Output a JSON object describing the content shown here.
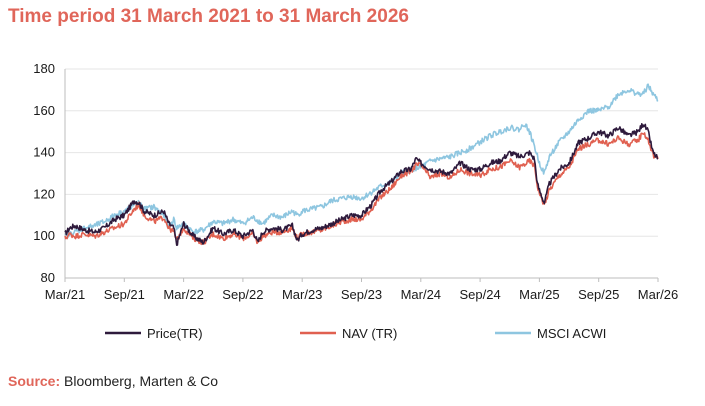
{
  "title": "Time period 31 March 2021 to 31 March 2026",
  "source": {
    "label": "Source:",
    "text": " Bloomberg, Marten & Co"
  },
  "colors": {
    "accent": "#e0665a",
    "price": "#2e1a3c",
    "nav": "#e06050",
    "msci": "#8ec6e0"
  },
  "chart_data": {
    "type": "line",
    "title": "Time period 31 March 2021 to 31 March 2026",
    "ylim": [
      80,
      180
    ],
    "yticks": [
      80,
      100,
      120,
      140,
      160,
      180
    ],
    "xlim": [
      0,
      60
    ],
    "xticks": [
      {
        "pos": 0,
        "label": "Mar/21"
      },
      {
        "pos": 6,
        "label": "Sep/21"
      },
      {
        "pos": 12,
        "label": "Mar/22"
      },
      {
        "pos": 18,
        "label": "Sep/22"
      },
      {
        "pos": 24,
        "label": "Mar/23"
      },
      {
        "pos": 30,
        "label": "Sep/23"
      },
      {
        "pos": 36,
        "label": "Mar/24"
      },
      {
        "pos": 42,
        "label": "Sep/24"
      },
      {
        "pos": 48,
        "label": "Mar/25"
      },
      {
        "pos": 54,
        "label": "Sep/25"
      },
      {
        "pos": 60,
        "label": "Mar/26"
      }
    ],
    "grid": true,
    "legend_position": "bottom",
    "series": [
      {
        "name": "Price(TR)",
        "color": "#2e1a3c",
        "x": [
          0,
          0.5,
          1,
          2,
          3,
          4,
          5,
          6,
          7,
          7.5,
          8,
          9,
          10,
          10.5,
          11,
          11.3,
          12,
          13,
          14,
          15,
          16,
          17,
          18,
          19,
          19.5,
          20,
          21,
          22,
          23,
          23.5,
          24,
          25,
          26,
          27,
          28,
          29,
          30,
          31,
          32,
          33,
          34,
          35,
          35.5,
          36,
          37,
          38,
          39,
          40,
          41,
          42,
          43,
          44,
          45,
          46,
          47,
          47.5,
          47.8,
          48,
          48.5,
          49,
          50,
          51,
          52,
          53,
          54,
          55,
          56,
          57,
          58,
          58.5,
          59,
          59.5,
          60
        ],
        "y": [
          101,
          104,
          105,
          103,
          102,
          104,
          108,
          110,
          117,
          116,
          112,
          110,
          112,
          106,
          104,
          96,
          106,
          100,
          97,
          104,
          101,
          103,
          100,
          103,
          97,
          102,
          104,
          103,
          105,
          98,
          101,
          103,
          104,
          106,
          108,
          110,
          110,
          115,
          122,
          126,
          131,
          132,
          137,
          135,
          132,
          131,
          130,
          135,
          132,
          132,
          135,
          136,
          140,
          138,
          140,
          137,
          125,
          122,
          116,
          125,
          132,
          135,
          145,
          147,
          150,
          148,
          152,
          148,
          150,
          154,
          150,
          140,
          137
        ]
      },
      {
        "name": "NAV (TR)",
        "color": "#e06050",
        "x": [
          0,
          0.5,
          1,
          2,
          3,
          4,
          5,
          6,
          7,
          7.5,
          8,
          9,
          10,
          10.5,
          11,
          11.3,
          12,
          13,
          14,
          15,
          16,
          17,
          18,
          19,
          19.5,
          20,
          21,
          22,
          23,
          23.5,
          24,
          25,
          26,
          27,
          28,
          29,
          30,
          31,
          32,
          33,
          34,
          35,
          35.5,
          36,
          37,
          38,
          39,
          40,
          41,
          42,
          43,
          44,
          45,
          46,
          47,
          47.5,
          47.8,
          48,
          48.5,
          49,
          50,
          51,
          52,
          53,
          54,
          55,
          56,
          57,
          58,
          58.5,
          59,
          59.5,
          60
        ],
        "y": [
          99,
          101,
          100,
          101,
          100,
          102,
          104,
          106,
          113,
          115,
          110,
          107,
          109,
          104,
          102,
          98,
          104,
          99,
          97,
          101,
          99,
          101,
          99,
          101,
          97,
          100,
          102,
          102,
          104,
          99,
          101,
          102,
          103,
          105,
          107,
          108,
          108,
          113,
          119,
          123,
          129,
          131,
          134,
          134,
          128,
          130,
          128,
          132,
          130,
          129,
          132,
          133,
          136,
          133,
          136,
          134,
          124,
          121,
          115,
          122,
          129,
          133,
          142,
          144,
          146,
          144,
          147,
          144,
          146,
          150,
          146,
          139,
          137
        ]
      },
      {
        "name": "MSCI ACWI",
        "color": "#8ec6e0",
        "x": [
          0,
          1,
          2,
          3,
          4,
          5,
          6,
          7,
          7.5,
          8,
          9,
          10,
          10.5,
          11,
          11.3,
          12,
          13,
          14,
          15,
          16,
          17,
          18,
          19,
          20,
          21,
          22,
          23,
          23.5,
          24,
          25,
          26,
          27,
          28,
          29,
          30,
          31,
          32,
          33,
          34,
          35,
          36,
          37,
          38,
          39,
          40,
          41,
          42,
          43,
          44,
          45,
          46,
          46.5,
          47,
          47.5,
          48,
          48.5,
          49,
          50,
          51,
          52,
          53,
          54,
          55,
          56,
          57,
          58,
          58.5,
          59,
          59.5,
          60
        ],
        "y": [
          100,
          102,
          104,
          105,
          107,
          110,
          112,
          115,
          116,
          113,
          114,
          110,
          104,
          108,
          104,
          106,
          102,
          103,
          107,
          106,
          108,
          106,
          109,
          106,
          110,
          109,
          112,
          110,
          112,
          113,
          114,
          117,
          118,
          119,
          118,
          121,
          124,
          126,
          130,
          132,
          133,
          136,
          137,
          138,
          140,
          142,
          145,
          148,
          150,
          152,
          151,
          154,
          150,
          143,
          135,
          130,
          138,
          145,
          150,
          156,
          160,
          160,
          162,
          168,
          170,
          168,
          168,
          172,
          168,
          165
        ]
      }
    ]
  }
}
